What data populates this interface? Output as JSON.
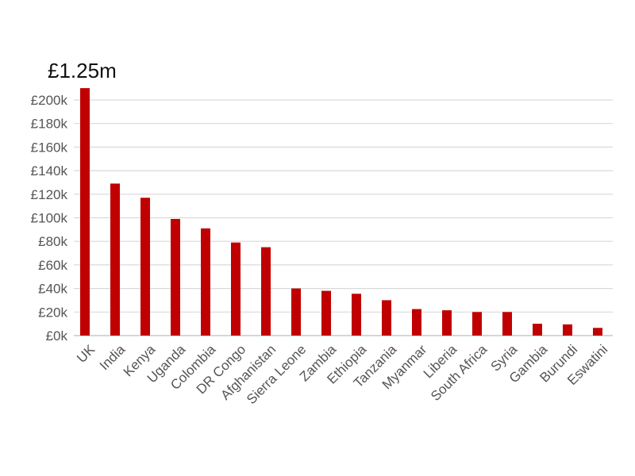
{
  "chart_data": {
    "type": "bar",
    "title": "£1.25m",
    "categories": [
      "UK",
      "India",
      "Kenya",
      "Uganda",
      "Colombia",
      "DR Congo",
      "Afghanistan",
      "Sierra Leone",
      "Zambia",
      "Ethiopia",
      "Tanzania",
      "Myanmar",
      "Liberia",
      "South Africa",
      "Syria",
      "Gambia",
      "Burundi",
      "Eswatini"
    ],
    "values": [
      210000,
      129000,
      117000,
      99000,
      91000,
      79000,
      75000,
      40000,
      38000,
      35500,
      30000,
      22500,
      21500,
      20000,
      20000,
      10000,
      9500,
      6500
    ],
    "yticks": [
      0,
      20000,
      40000,
      60000,
      80000,
      100000,
      120000,
      140000,
      160000,
      180000,
      200000
    ],
    "ytick_labels": [
      "£0k",
      "£20k",
      "£40k",
      "£60k",
      "£80k",
      "£100k",
      "£120k",
      "£140k",
      "£160k",
      "£180k",
      "£200k"
    ],
    "ylim": [
      0,
      200000
    ],
    "xlabel": "",
    "ylabel": "",
    "grid": true,
    "legend": "none",
    "bar_color": "#c00000"
  }
}
